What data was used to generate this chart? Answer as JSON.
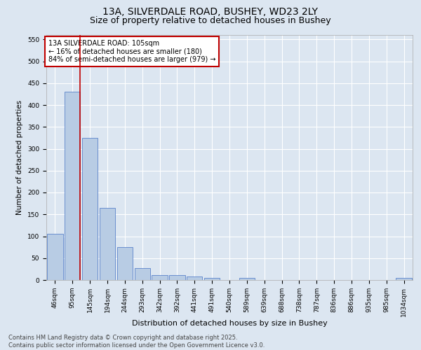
{
  "title_line1": "13A, SILVERDALE ROAD, BUSHEY, WD23 2LY",
  "title_line2": "Size of property relative to detached houses in Bushey",
  "xlabel": "Distribution of detached houses by size in Bushey",
  "ylabel": "Number of detached properties",
  "categories": [
    "46sqm",
    "95sqm",
    "145sqm",
    "194sqm",
    "244sqm",
    "293sqm",
    "342sqm",
    "392sqm",
    "441sqm",
    "491sqm",
    "540sqm",
    "589sqm",
    "639sqm",
    "688sqm",
    "738sqm",
    "787sqm",
    "836sqm",
    "886sqm",
    "935sqm",
    "985sqm",
    "1034sqm"
  ],
  "values": [
    105,
    430,
    325,
    165,
    75,
    27,
    12,
    12,
    8,
    5,
    0,
    5,
    0,
    0,
    0,
    0,
    0,
    0,
    0,
    0,
    5
  ],
  "bar_color": "#b8cce4",
  "bar_edge_color": "#4472c4",
  "vline_color": "#c00000",
  "vline_x_index": 1,
  "annotation_text": "13A SILVERDALE ROAD: 105sqm\n← 16% of detached houses are smaller (180)\n84% of semi-detached houses are larger (979) →",
  "annotation_box_color": "#ffffff",
  "annotation_box_edgecolor": "#c00000",
  "ylim": [
    0,
    560
  ],
  "yticks": [
    0,
    50,
    100,
    150,
    200,
    250,
    300,
    350,
    400,
    450,
    500,
    550
  ],
  "bg_color": "#dce6f1",
  "footer_line1": "Contains HM Land Registry data © Crown copyright and database right 2025.",
  "footer_line2": "Contains public sector information licensed under the Open Government Licence v3.0.",
  "title_fontsize": 10,
  "subtitle_fontsize": 9,
  "tick_fontsize": 6.5,
  "xlabel_fontsize": 8,
  "ylabel_fontsize": 7.5,
  "annotation_fontsize": 7,
  "footer_fontsize": 6
}
